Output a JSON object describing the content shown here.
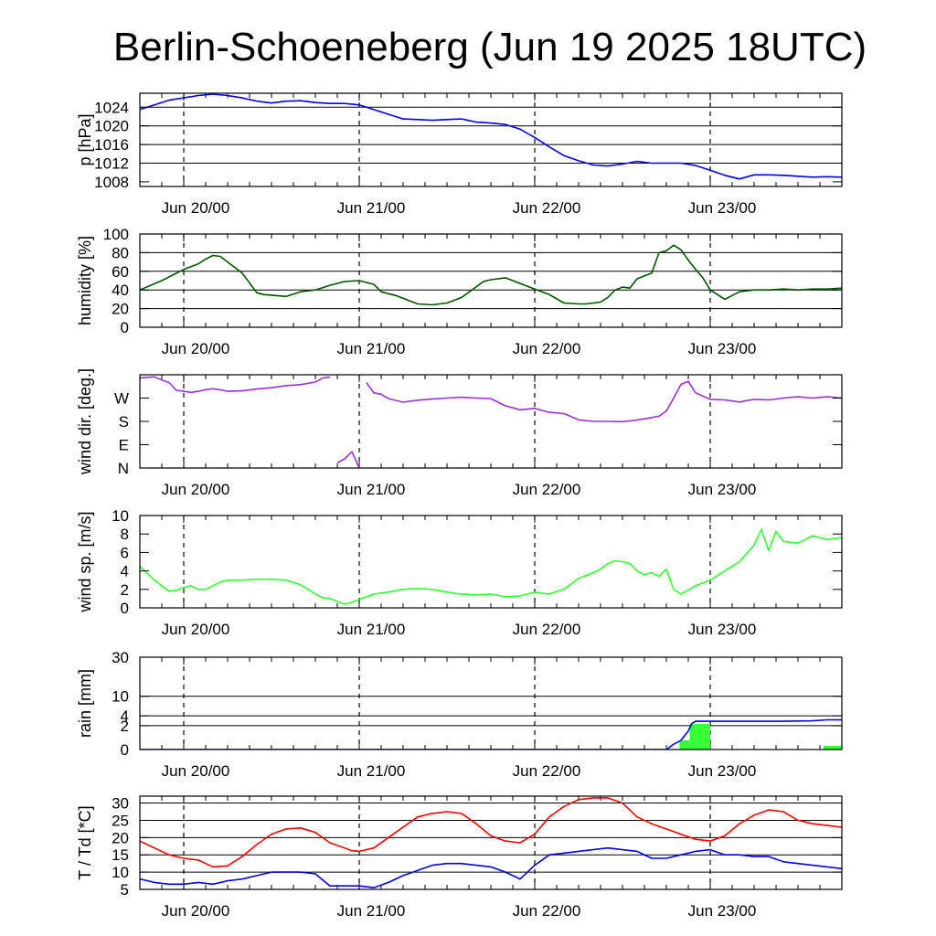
{
  "title": "Berlin-Schoeneberg (Jun 19 2025 18UTC)",
  "day_labels": [
    "Jun 20/00",
    "Jun 21/00",
    "Jun 22/00",
    "Jun 23/00"
  ],
  "colors": {
    "pressure": "#0000dd",
    "humidity": "#005500",
    "wind_dir": "#9b30d9",
    "wind_speed": "#33ff33",
    "rain_total": "#0000dd",
    "rain_bars": "#33ff33",
    "temperature": "#ee0000",
    "dewpoint": "#0000dd"
  },
  "chart_data": [
    {
      "type": "line",
      "id": "pressure",
      "ylabel": "p [hPa]",
      "x_unit": "hours since Jun 19 18UTC",
      "xlim": [
        0,
        96
      ],
      "ylim": [
        1007,
        1027
      ],
      "yticks": [
        1008,
        1012,
        1016,
        1020,
        1024
      ],
      "grid_y": [
        1012,
        1016,
        1020,
        1024
      ],
      "series": [
        {
          "key": "p",
          "x": [
            0,
            2,
            4,
            6,
            8,
            10,
            12,
            14,
            16,
            18,
            20,
            22,
            24,
            26,
            28,
            30,
            32,
            36,
            40,
            44,
            46,
            48,
            50,
            52,
            54,
            56,
            58,
            60,
            62,
            64,
            66,
            68,
            70,
            72,
            74,
            76,
            78,
            80,
            82,
            84,
            86,
            88,
            90,
            92,
            94,
            96
          ],
          "y": [
            1023.5,
            1024.5,
            1025.5,
            1026,
            1026.5,
            1026.8,
            1026.5,
            1026,
            1025.3,
            1024.9,
            1025.3,
            1025.4,
            1025,
            1024.8,
            1024.8,
            1024.5,
            1023.5,
            1021.5,
            1021.2,
            1021.5,
            1020.8,
            1020.6,
            1020.3,
            1019.3,
            1017.5,
            1015.5,
            1013.6,
            1012.5,
            1011.6,
            1011.4,
            1011.8,
            1012.4,
            1012,
            1012,
            1012,
            1011.5,
            1010.5,
            1009.4,
            1008.6,
            1009.5,
            1009.5,
            1009.4,
            1009.2,
            1009,
            1009.1,
            1009
          ]
        }
      ]
    },
    {
      "type": "line",
      "id": "humidity",
      "ylabel": "humidity [%]",
      "x_unit": "hours since Jun 19 18UTC",
      "xlim": [
        0,
        96
      ],
      "ylim": [
        0,
        100
      ],
      "yticks": [
        0,
        20,
        40,
        60,
        80,
        100
      ],
      "grid_y": [
        20,
        40,
        60,
        80
      ],
      "series": [
        {
          "key": "rh",
          "x": [
            0,
            3,
            6,
            8,
            9,
            10,
            11,
            12,
            14,
            16,
            17,
            20,
            22,
            24,
            26,
            28,
            30,
            32,
            33,
            35,
            38,
            40,
            42,
            44,
            47,
            48,
            50,
            52,
            54,
            56,
            58,
            60,
            61,
            62,
            63,
            64,
            65,
            66,
            67,
            68,
            69,
            70,
            71,
            72,
            73,
            74,
            75,
            76,
            77,
            78,
            80,
            82,
            84,
            86,
            88,
            90,
            92,
            94,
            96
          ],
          "y": [
            40,
            50,
            62,
            68,
            73,
            77,
            76,
            70,
            58,
            37,
            35,
            33,
            38,
            40,
            45,
            49,
            50,
            46,
            38,
            34,
            25,
            24,
            26,
            32,
            49,
            51,
            53,
            47,
            41,
            35,
            26,
            25,
            25,
            26,
            27,
            32,
            40,
            43,
            42,
            52,
            55,
            58,
            80,
            82,
            88,
            83,
            72,
            62,
            53,
            40,
            30,
            38,
            40,
            40,
            41,
            40,
            41,
            41,
            42
          ]
        }
      ]
    },
    {
      "type": "line",
      "id": "wind_direction",
      "ylabel": "wind dir. [deg.]",
      "x_unit": "hours since Jun 19 18UTC",
      "xlim": [
        0,
        96
      ],
      "ylim": [
        0,
        360
      ],
      "ytick_values": [
        0,
        90,
        180,
        270
      ],
      "yticks": [
        "N",
        "E",
        "S",
        "W"
      ],
      "wraps_at": 360,
      "series": [
        {
          "key": "dir",
          "x": [
            0,
            2,
            3,
            4,
            5,
            6,
            7,
            8,
            9,
            10,
            11,
            12,
            14,
            16,
            18,
            20,
            22,
            24,
            25,
            26,
            27,
            28,
            29,
            30,
            31,
            32,
            33,
            34,
            36,
            38,
            40,
            42,
            44,
            46,
            48,
            50,
            52,
            54,
            56,
            58,
            60,
            62,
            64,
            66,
            68,
            69,
            70,
            71,
            72,
            73,
            74,
            75,
            76,
            78,
            80,
            82,
            84,
            86,
            88,
            90,
            92,
            94,
            96
          ],
          "y": [
            348,
            352,
            340,
            330,
            300,
            296,
            292,
            296,
            302,
            306,
            302,
            296,
            298,
            305,
            310,
            318,
            322,
            332,
            347,
            352,
            380,
            395,
            423,
            360,
            330,
            290,
            285,
            268,
            254,
            262,
            266,
            270,
            273,
            270,
            268,
            240,
            225,
            230,
            215,
            210,
            186,
            180,
            180,
            179,
            185,
            190,
            195,
            200,
            220,
            270,
            323,
            335,
            290,
            265,
            263,
            255,
            265,
            263,
            270,
            275,
            270,
            275,
            270
          ]
        }
      ]
    },
    {
      "type": "line",
      "id": "wind_speed",
      "ylabel": "wind sp. [m/s]",
      "x_unit": "hours since Jun 19 18UTC",
      "xlim": [
        0,
        96
      ],
      "ylim": [
        0,
        10
      ],
      "yticks": [
        0,
        2,
        4,
        6,
        8,
        10
      ],
      "series": [
        {
          "key": "spd",
          "x": [
            0,
            2,
            4,
            5,
            6,
            7,
            8,
            9,
            10,
            11,
            12,
            13,
            14,
            16,
            18,
            20,
            22,
            23,
            24,
            25,
            26,
            27,
            28,
            29,
            30,
            32,
            34,
            36,
            38,
            40,
            42,
            44,
            46,
            48,
            50,
            52,
            54,
            56,
            58,
            60,
            62,
            63,
            64,
            65,
            66,
            67,
            68,
            69,
            70,
            71,
            72,
            73,
            74,
            76,
            78,
            80,
            82,
            84,
            85,
            86,
            87,
            88,
            90,
            92,
            94,
            96
          ],
          "y": [
            4.5,
            3,
            1.8,
            1.9,
            2.2,
            2.4,
            2.0,
            2.0,
            2.4,
            2.8,
            3.0,
            3.0,
            3.0,
            3.1,
            3.1,
            3.0,
            2.5,
            2.0,
            1.5,
            1.1,
            1.0,
            0.7,
            0.4,
            0.6,
            0.9,
            1.5,
            1.7,
            2.0,
            2.1,
            2.0,
            1.7,
            1.5,
            1.4,
            1.5,
            1.2,
            1.3,
            1.7,
            1.5,
            2.0,
            3.2,
            3.8,
            4.2,
            4.8,
            5.1,
            5.0,
            4.8,
            4.0,
            3.6,
            3.8,
            3.4,
            4.2,
            2.0,
            1.5,
            2.4,
            3.0,
            4.0,
            5.0,
            6.8,
            8.5,
            6.2,
            8.3,
            7.2,
            7.0,
            7.8,
            7.4,
            7.6
          ]
        }
      ]
    },
    {
      "type": "bar",
      "id": "rain",
      "ylabel": "rain [mm]",
      "x_unit": "hours since Jun 19 18UTC",
      "xlim": [
        0,
        96
      ],
      "ytick_values": [
        0,
        2,
        4,
        10,
        30
      ],
      "yticks": [
        "0",
        "2",
        "4",
        "10",
        "30"
      ],
      "scale": "sqrt",
      "bars": [
        {
          "x0": 73.8,
          "x1": 75.2,
          "value": 0.3
        },
        {
          "x0": 75.2,
          "x1": 78.0,
          "value": 2.3
        },
        {
          "x0": 93.5,
          "x1": 96.0,
          "value": 0.05
        }
      ],
      "series": [
        {
          "key": "rain_total",
          "x": [
            0,
            72,
            73,
            74,
            75,
            75.5,
            76,
            80,
            84,
            88,
            92,
            94,
            96
          ],
          "y": [
            0,
            0,
            0.1,
            0.3,
            1.2,
            2.4,
            2.8,
            2.8,
            2.8,
            2.8,
            2.9,
            3.1,
            3.1
          ]
        }
      ]
    },
    {
      "type": "line",
      "id": "temperature",
      "ylabel": "T / Td [*C]",
      "x_unit": "hours since Jun 19 18UTC",
      "xlim": [
        0,
        96
      ],
      "ylim": [
        5,
        32
      ],
      "yticks": [
        5,
        10,
        15,
        20,
        25,
        30
      ],
      "grid_y": [
        10,
        15,
        20,
        25,
        30
      ],
      "series": [
        {
          "key": "T",
          "x": [
            0,
            2,
            4,
            6,
            8,
            9,
            10,
            12,
            14,
            16,
            18,
            20,
            22,
            24,
            26,
            28,
            29,
            30,
            32,
            34,
            36,
            38,
            40,
            42,
            44,
            46,
            48,
            50,
            52,
            54,
            56,
            58,
            60,
            62,
            64,
            66,
            68,
            70,
            72,
            74,
            76,
            78,
            80,
            82,
            84,
            86,
            88,
            90,
            92,
            94,
            96
          ],
          "y": [
            19,
            17,
            15,
            14,
            13.5,
            12.5,
            11.5,
            11.8,
            14.5,
            18,
            21,
            22.5,
            22.8,
            21.5,
            18.5,
            17,
            16.2,
            16,
            17,
            20,
            23,
            26,
            27,
            27.5,
            27,
            24,
            20.5,
            19,
            18.5,
            21,
            26,
            29,
            31,
            31.5,
            31.5,
            30,
            26,
            24,
            22.5,
            21,
            19.5,
            19,
            20.5,
            24,
            26.5,
            28,
            27.5,
            25,
            24,
            23.5,
            23
          ]
        },
        {
          "key": "Td",
          "x": [
            0,
            2,
            4,
            6,
            8,
            10,
            12,
            14,
            16,
            18,
            20,
            22,
            24,
            26,
            28,
            30,
            32,
            34,
            36,
            38,
            40,
            42,
            44,
            46,
            48,
            50,
            52,
            54,
            56,
            58,
            60,
            62,
            64,
            66,
            68,
            70,
            72,
            74,
            76,
            78,
            80,
            82,
            84,
            86,
            88,
            90,
            92,
            94,
            96
          ],
          "y": [
            8,
            7,
            6.5,
            6.5,
            7,
            6.5,
            7.5,
            8,
            9,
            10,
            10,
            10,
            9.5,
            6,
            6,
            6,
            5.5,
            7,
            9,
            10.5,
            12,
            12.5,
            12.5,
            12,
            11.5,
            10,
            8,
            12,
            15,
            15.5,
            16,
            16.5,
            17,
            16.5,
            16,
            14,
            14,
            15,
            16,
            16.5,
            15,
            15,
            14.5,
            14.5,
            13,
            12.5,
            12,
            11.5,
            11
          ]
        }
      ]
    }
  ]
}
